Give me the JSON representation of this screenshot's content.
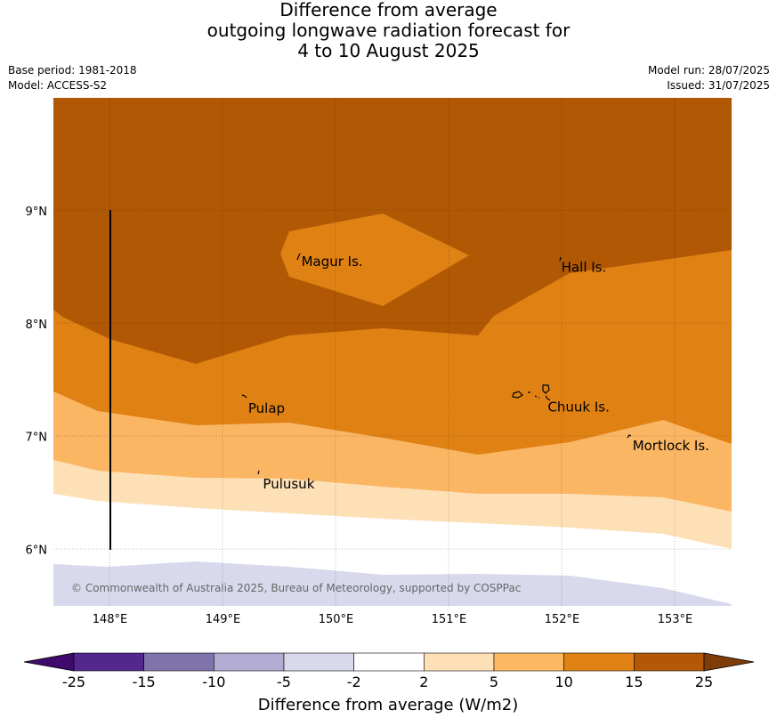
{
  "title": {
    "line1": "Difference from average",
    "line2": "outgoing longwave radiation forecast for",
    "line3": "4 to 10 August 2025"
  },
  "meta": {
    "base_period": "Base period: 1981-2018",
    "model": "Model: ACCESS-S2",
    "model_run": "Model run: 28/07/2025",
    "issued": "Issued: 31/07/2025"
  },
  "map": {
    "lon_range": [
      147.5,
      153.5
    ],
    "lat_range": [
      5.5,
      10.0
    ],
    "lon_ticks": [
      {
        "value": 148,
        "label": "148°E"
      },
      {
        "value": 149,
        "label": "149°E"
      },
      {
        "value": 150,
        "label": "150°E"
      },
      {
        "value": 151,
        "label": "151°E"
      },
      {
        "value": 152,
        "label": "152°E"
      },
      {
        "value": 153,
        "label": "153°E"
      }
    ],
    "lat_ticks": [
      {
        "value": 9,
        "label": "9°N"
      },
      {
        "value": 8,
        "label": "8°N"
      },
      {
        "value": 7,
        "label": "7°N"
      },
      {
        "value": 6,
        "label": "6°N"
      }
    ],
    "places": [
      {
        "name": "Magur Is.",
        "lon": 149.67,
        "lat": 8.55
      },
      {
        "name": "Hall Is.",
        "lon": 151.97,
        "lat": 8.5
      },
      {
        "name": "Pulap",
        "lon": 149.2,
        "lat": 7.25
      },
      {
        "name": "Chuuk Is.",
        "lon": 151.85,
        "lat": 7.26
      },
      {
        "name": "Mortlock Is.",
        "lon": 152.6,
        "lat": 6.92
      },
      {
        "name": "Pulusuk",
        "lon": 149.33,
        "lat": 6.58
      }
    ],
    "copyright": "© Commonwealth of Australia 2025, Bureau of Meteorology, supported by COSPPac",
    "colors": {
      "above_15": "#b15805",
      "10_15": "#e08114",
      "5_10": "#fbb664",
      "2_5": "#fde0b6",
      "neutral": "#ffffff",
      "minus5_minus2": "#d8d9ec"
    }
  },
  "colorbar": {
    "title": "Difference from average (W/m2)",
    "boundaries": [
      "-25",
      "-15",
      "-10",
      "-5",
      "-2",
      "2",
      "5",
      "10",
      "15",
      "25"
    ],
    "colors": [
      "#3e0b6d",
      "#54278f",
      "#8073ac",
      "#b2abd2",
      "#d8daeb",
      "#ffffff",
      "#fee0b6",
      "#fdb863",
      "#e08214",
      "#b35806",
      "#7f3b08"
    ]
  }
}
